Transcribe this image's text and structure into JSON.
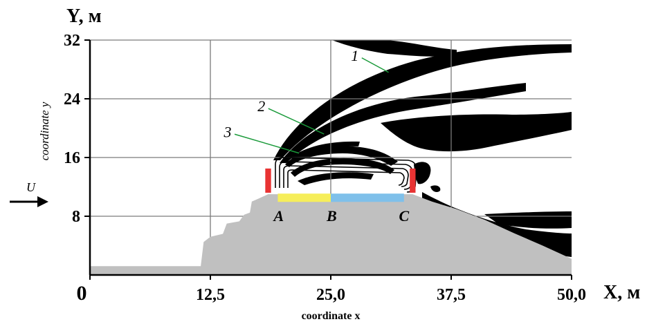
{
  "chart_data": {
    "type": "area",
    "title": "",
    "xlabel": "coordinate x",
    "ylabel": "coordinate y",
    "x_axis_unit_label": "X, м",
    "y_axis_unit_label": "Y, м",
    "xlim": [
      0,
      50
    ],
    "ylim": [
      0,
      32
    ],
    "x_ticks": [
      {
        "value": 0,
        "label": "0"
      },
      {
        "value": 12.5,
        "label": "12,5"
      },
      {
        "value": 25,
        "label": "25,0"
      },
      {
        "value": 37.5,
        "label": "37,5"
      },
      {
        "value": 50,
        "label": "50,0"
      }
    ],
    "y_ticks": [
      {
        "value": 8,
        "label": "8"
      },
      {
        "value": 16,
        "label": "16"
      },
      {
        "value": 24,
        "label": "24"
      },
      {
        "value": 32,
        "label": "32"
      }
    ],
    "grid": true,
    "flow_label": "U",
    "terrain_profile": [
      [
        0,
        1.2
      ],
      [
        11.5,
        1.2
      ],
      [
        11.8,
        4.5
      ],
      [
        12.5,
        5.2
      ],
      [
        13.8,
        5.6
      ],
      [
        14.2,
        7.0
      ],
      [
        15.5,
        7.3
      ],
      [
        16.0,
        8.2
      ],
      [
        16.6,
        8.5
      ],
      [
        16.8,
        10.0
      ],
      [
        17.5,
        10.4
      ],
      [
        18.5,
        11.0
      ],
      [
        33.5,
        11.0
      ],
      [
        35.5,
        10.0
      ],
      [
        38.0,
        9.0
      ],
      [
        41.0,
        7.5
      ],
      [
        44.0,
        5.7
      ],
      [
        47.0,
        4.0
      ],
      [
        50.0,
        2.2
      ],
      [
        50,
        0
      ],
      [
        0,
        0
      ]
    ],
    "segments": [
      {
        "from": "A",
        "to": "B",
        "x_start": 19.5,
        "x_end": 25.0,
        "y": 10.8,
        "color": "#f6ee5a"
      },
      {
        "from": "B",
        "to": "C",
        "x_start": 25.0,
        "x_end": 32.6,
        "y": 10.8,
        "color": "#7fc0ea"
      }
    ],
    "points": [
      {
        "label": "A",
        "x": 19.6
      },
      {
        "label": "B",
        "x": 25.1
      },
      {
        "label": "C",
        "x": 32.6
      }
    ],
    "walls": [
      {
        "x_start": 18.2,
        "x_end": 18.8,
        "y_start": 11.2,
        "y_end": 14.5,
        "color": "#e83333"
      },
      {
        "x_start": 33.2,
        "x_end": 33.8,
        "y_start": 11.2,
        "y_end": 14.5,
        "color": "#e83333"
      }
    ],
    "curve_labels": [
      {
        "label": "1",
        "x": 27.5,
        "y": 29.2,
        "target_x": 31.0,
        "target_y": 27.6
      },
      {
        "label": "2",
        "x": 17.8,
        "y": 22.3,
        "target_x": 24.3,
        "target_y": 19.2
      },
      {
        "label": "3",
        "x": 14.3,
        "y": 18.8,
        "target_x": 21.7,
        "target_y": 16.6
      }
    ],
    "colors": {
      "terrain": "#c0c0c0",
      "bands": "#000000",
      "grid": "#7a7a7a",
      "curve_leaders": "#1a9a3a",
      "background": "#ffffff"
    }
  }
}
